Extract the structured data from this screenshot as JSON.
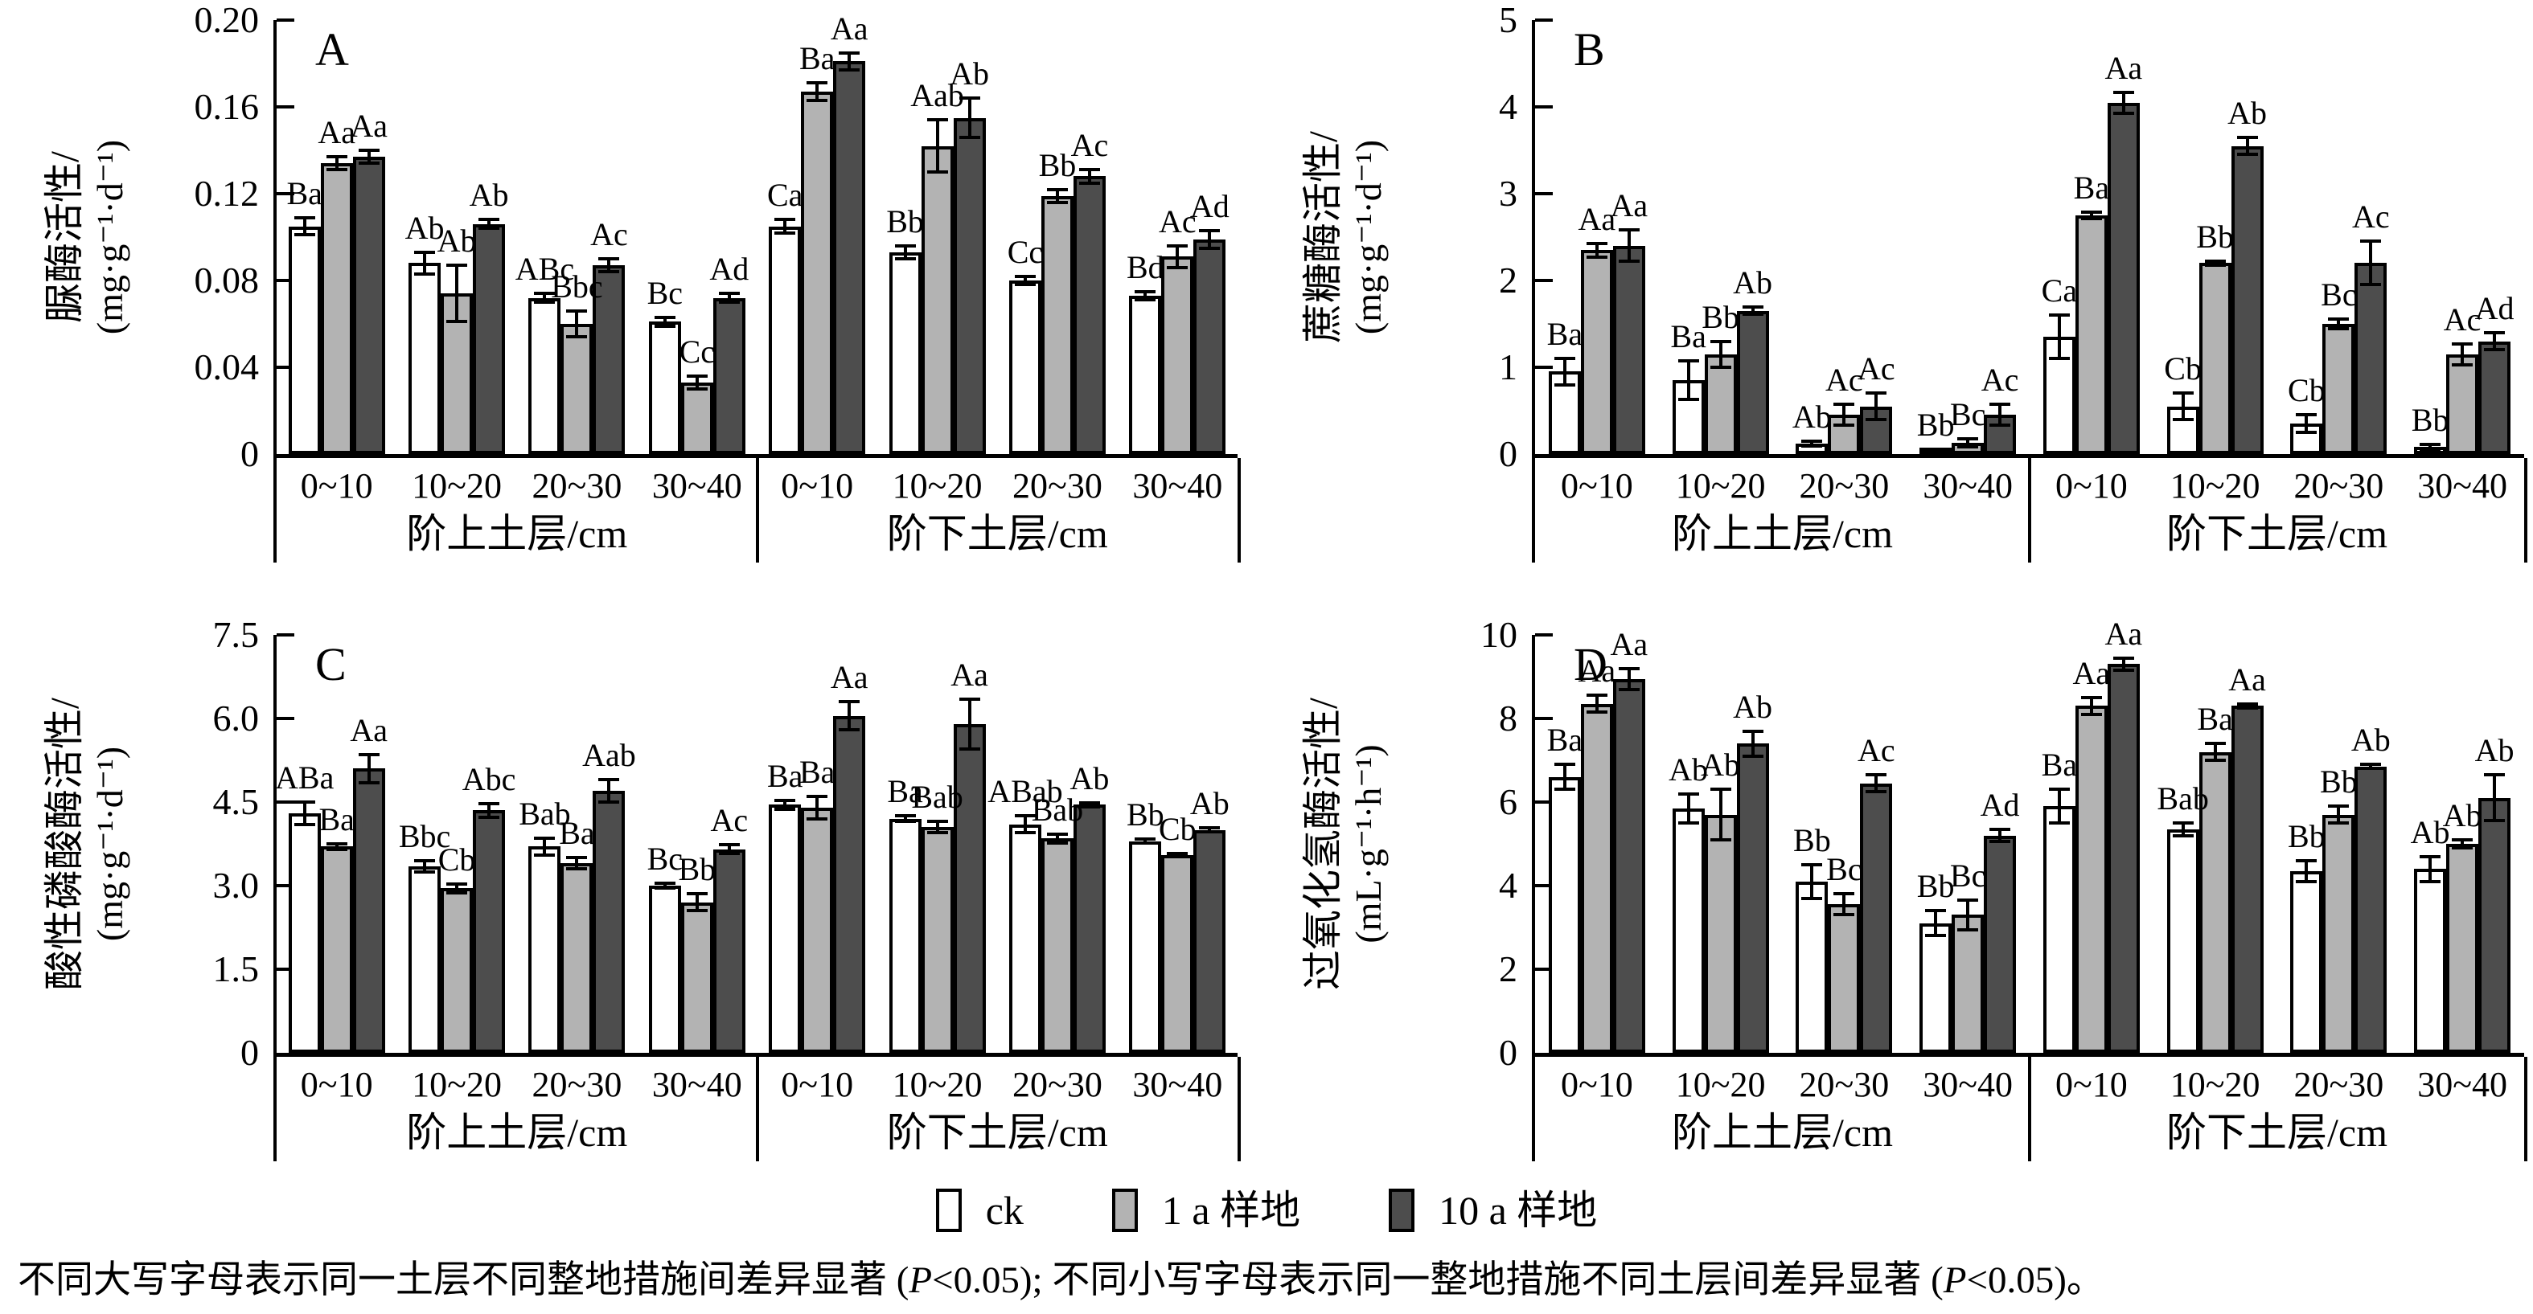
{
  "legend": {
    "items": [
      {
        "label": "ck",
        "color": "#ffffff"
      },
      {
        "label": "1 a 样地",
        "color": "#b3b3b3"
      },
      {
        "label": "10 a 样地",
        "color": "#4d4d4d"
      }
    ]
  },
  "footnote": {
    "parts": [
      {
        "t": "不同大写字母表示同一土层不同整地措施间差异显著 ("
      },
      {
        "t": "P"
      },
      {
        "t": "<0.05); 不同小写字母表示同一整地措施不同土层间差异显著 ("
      },
      {
        "t": "P"
      },
      {
        "t": "<0.05)。"
      }
    ]
  },
  "chart_data": [
    {
      "id": "A",
      "type": "bar",
      "ylabel": "脲酶活性/",
      "unit": "(mg·g⁻¹·d⁻¹)",
      "ylim": [
        0,
        0.2
      ],
      "yticks": [
        "0",
        "0.04",
        "0.08",
        "0.12",
        "0.16",
        "0.20"
      ],
      "sections": [
        "阶上土层/cm",
        "阶下土层/cm"
      ],
      "categories": [
        "0~10",
        "10~20",
        "20~30",
        "30~40",
        "0~10",
        "10~20",
        "20~30",
        "30~40"
      ],
      "series": [
        "ck",
        "1 a 样地",
        "10 a 样地"
      ],
      "values": [
        [
          0.105,
          0.134,
          0.137
        ],
        [
          0.088,
          0.074,
          0.106
        ],
        [
          0.072,
          0.06,
          0.087
        ],
        [
          0.061,
          0.033,
          0.072
        ],
        [
          0.105,
          0.167,
          0.181
        ],
        [
          0.093,
          0.142,
          0.155
        ],
        [
          0.08,
          0.119,
          0.128
        ],
        [
          0.073,
          0.091,
          0.099
        ]
      ],
      "errors": [
        [
          0.004,
          0.003,
          0.003
        ],
        [
          0.005,
          0.013,
          0.002
        ],
        [
          0.002,
          0.006,
          0.003
        ],
        [
          0.002,
          0.003,
          0.002
        ],
        [
          0.003,
          0.004,
          0.004
        ],
        [
          0.003,
          0.012,
          0.009
        ],
        [
          0.002,
          0.003,
          0.003
        ],
        [
          0.002,
          0.005,
          0.004
        ]
      ],
      "letters": [
        [
          "Ba",
          "Aa",
          "Aa"
        ],
        [
          "Ab",
          "Ab",
          "Ab"
        ],
        [
          "ABc",
          "Bbc",
          "Ac"
        ],
        [
          "Bc",
          "Cc",
          "Ad"
        ],
        [
          "Ca",
          "Ba",
          "Aa"
        ],
        [
          "Bb",
          "Aab",
          "Ab"
        ],
        [
          "Cc",
          "Bb",
          "Ac"
        ],
        [
          "Bd",
          "Ac",
          "Ad"
        ]
      ]
    },
    {
      "id": "B",
      "type": "bar",
      "ylabel": "蔗糖酶活性/",
      "unit": "(mg·g⁻¹·d⁻¹)",
      "ylim": [
        0,
        5
      ],
      "yticks": [
        "0",
        "1",
        "2",
        "3",
        "4",
        "5"
      ],
      "sections": [
        "阶上土层/cm",
        "阶下土层/cm"
      ],
      "categories": [
        "0~10",
        "10~20",
        "20~30",
        "30~40",
        "0~10",
        "10~20",
        "20~30",
        "30~40"
      ],
      "series": [
        "ck",
        "1 a 样地",
        "10 a 样地"
      ],
      "values": [
        [
          0.95,
          2.35,
          2.4
        ],
        [
          0.85,
          1.15,
          1.65
        ],
        [
          0.12,
          0.45,
          0.55
        ],
        [
          0.04,
          0.13,
          0.45
        ],
        [
          1.35,
          2.75,
          4.05
        ],
        [
          0.55,
          2.2,
          3.55
        ],
        [
          0.35,
          1.5,
          2.2
        ],
        [
          0.08,
          1.15,
          1.3
        ]
      ],
      "errors": [
        [
          0.15,
          0.08,
          0.18
        ],
        [
          0.22,
          0.15,
          0.04
        ],
        [
          0.03,
          0.12,
          0.15
        ],
        [
          0.02,
          0.05,
          0.12
        ],
        [
          0.25,
          0.04,
          0.12
        ],
        [
          0.15,
          0.02,
          0.1
        ],
        [
          0.1,
          0.06,
          0.25
        ],
        [
          0.03,
          0.12,
          0.1
        ]
      ],
      "letters": [
        [
          "Ba",
          "Aa",
          "Aa"
        ],
        [
          "Ba",
          "Bb",
          "Ab"
        ],
        [
          "Ab",
          "Ac",
          "Ac"
        ],
        [
          "Bb",
          "Bc",
          "Ac"
        ],
        [
          "Ca",
          "Ba",
          "Aa"
        ],
        [
          "Cb",
          "Bb",
          "Ab"
        ],
        [
          "Cb",
          "Bc",
          "Ac"
        ],
        [
          "Bb",
          "Ac",
          "Ad"
        ]
      ]
    },
    {
      "id": "C",
      "type": "bar",
      "ylabel": "酸性磷酸酶活性/",
      "unit": "(mg·g⁻¹·d⁻¹)",
      "ylim": [
        0,
        7.5
      ],
      "yticks": [
        "0",
        "1.5",
        "3.0",
        "4.5",
        "6.0",
        "7.5"
      ],
      "sections": [
        "阶上土层/cm",
        "阶下土层/cm"
      ],
      "categories": [
        "0~10",
        "10~20",
        "20~30",
        "30~40",
        "0~10",
        "10~20",
        "20~30",
        "30~40"
      ],
      "series": [
        "ck",
        "1 a 样地",
        "10 a 样地"
      ],
      "values": [
        [
          4.3,
          3.7,
          5.1
        ],
        [
          3.35,
          2.95,
          4.35
        ],
        [
          3.7,
          3.4,
          4.7
        ],
        [
          3.0,
          2.7,
          3.65
        ],
        [
          4.45,
          4.4,
          6.05
        ],
        [
          4.2,
          4.05,
          5.9
        ],
        [
          4.1,
          3.85,
          4.45
        ],
        [
          3.8,
          3.55,
          4.0
        ]
      ],
      "errors": [
        [
          0.2,
          0.05,
          0.25
        ],
        [
          0.1,
          0.08,
          0.12
        ],
        [
          0.15,
          0.1,
          0.2
        ],
        [
          0.05,
          0.15,
          0.08
        ],
        [
          0.08,
          0.2,
          0.25
        ],
        [
          0.05,
          0.1,
          0.45
        ],
        [
          0.15,
          0.08,
          0.04
        ],
        [
          0.03,
          0.03,
          0.04
        ]
      ],
      "letters": [
        [
          "ABa",
          "Ba",
          "Aa"
        ],
        [
          "Bbc",
          "Cb",
          "Abc"
        ],
        [
          "Bab",
          "Ba",
          "Aab"
        ],
        [
          "Bc",
          "Bb",
          "Ac"
        ],
        [
          "Ba",
          "Ba",
          "Aa"
        ],
        [
          "Ba",
          "Bab",
          "Aa"
        ],
        [
          "ABab",
          "Bab",
          "Ab"
        ],
        [
          "Bb",
          "Cb",
          "Ab"
        ]
      ]
    },
    {
      "id": "D",
      "type": "bar",
      "ylabel": "过氧化氢酶活性/",
      "unit": "(mL·g⁻¹·h⁻¹)",
      "ylim": [
        0,
        10
      ],
      "yticks": [
        "0",
        "2",
        "4",
        "6",
        "8",
        "10"
      ],
      "sections": [
        "阶上土层/cm",
        "阶下土层/cm"
      ],
      "categories": [
        "0~10",
        "10~20",
        "20~30",
        "30~40",
        "0~10",
        "10~20",
        "20~30",
        "30~40"
      ],
      "series": [
        "ck",
        "1 a 样地",
        "10 a 样地"
      ],
      "values": [
        [
          6.6,
          8.35,
          8.95
        ],
        [
          5.85,
          5.7,
          7.4
        ],
        [
          4.1,
          3.55,
          6.45
        ],
        [
          3.1,
          3.3,
          5.2
        ],
        [
          5.9,
          8.3,
          9.3
        ],
        [
          5.35,
          7.2,
          8.3
        ],
        [
          4.35,
          5.7,
          6.85
        ],
        [
          4.4,
          5.0,
          6.1
        ]
      ],
      "errors": [
        [
          0.3,
          0.2,
          0.25
        ],
        [
          0.35,
          0.6,
          0.3
        ],
        [
          0.4,
          0.25,
          0.2
        ],
        [
          0.3,
          0.35,
          0.15
        ],
        [
          0.4,
          0.2,
          0.15
        ],
        [
          0.15,
          0.2,
          0.05
        ],
        [
          0.25,
          0.2,
          0.05
        ],
        [
          0.3,
          0.1,
          0.55
        ]
      ],
      "letters": [
        [
          "Ba",
          "Aa",
          "Aa"
        ],
        [
          "Ab",
          "Ab",
          "Ab"
        ],
        [
          "Bb",
          "Bc",
          "Ac"
        ],
        [
          "Bb",
          "Bc",
          "Ad"
        ],
        [
          "Ba",
          "Aa",
          "Aa"
        ],
        [
          "Bab",
          "Ba",
          "Aa"
        ],
        [
          "Bb",
          "Bb",
          "Ab"
        ],
        [
          "Ab",
          "Ab",
          "Ab"
        ]
      ]
    }
  ]
}
